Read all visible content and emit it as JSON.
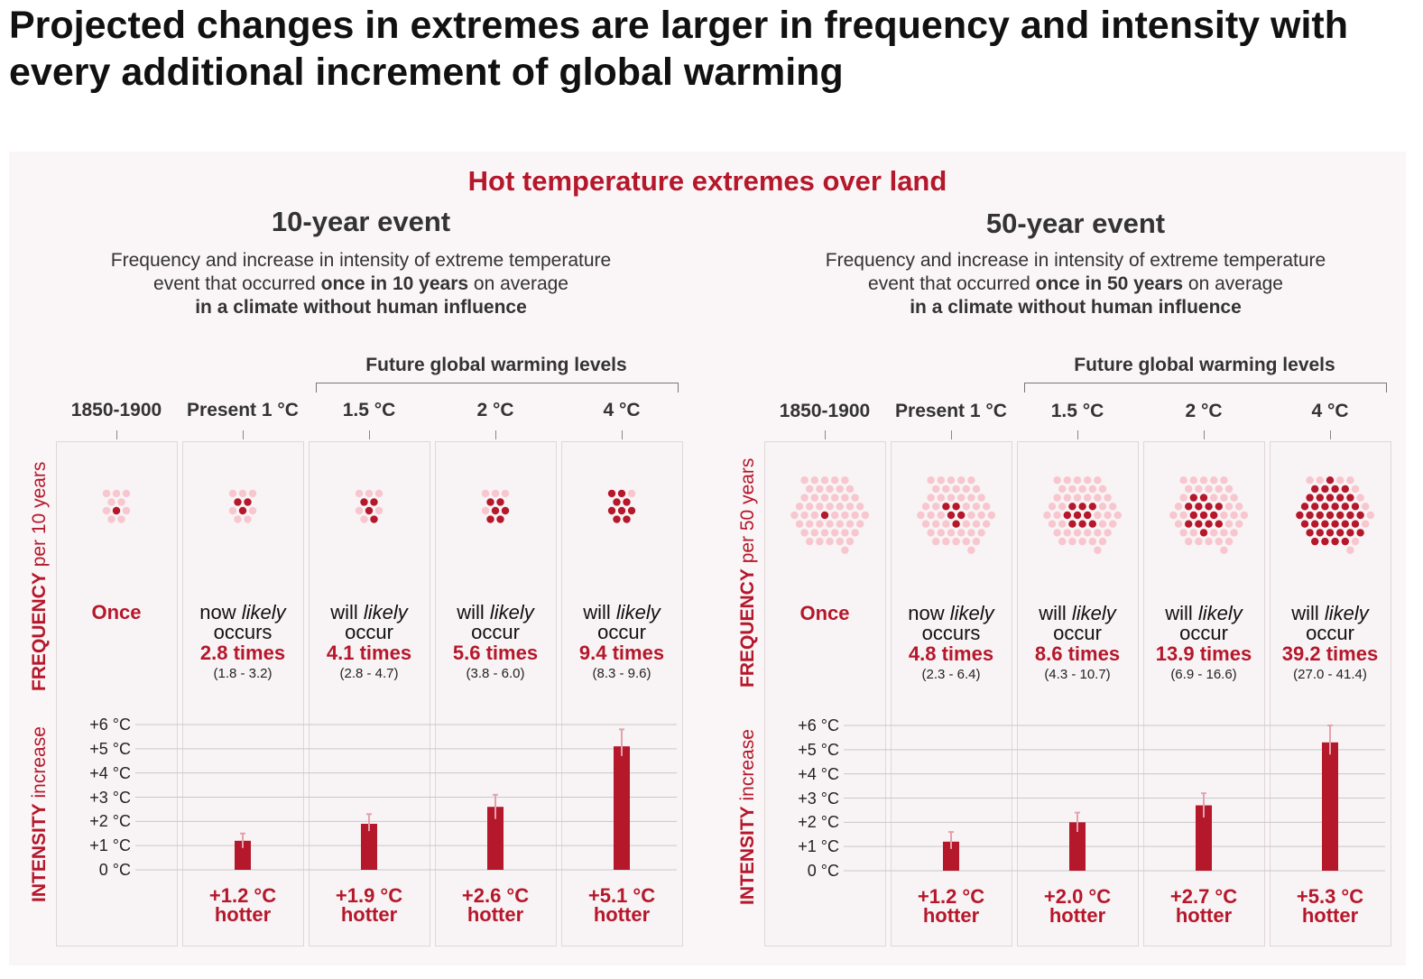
{
  "main_title": "Projected changes in extremes are larger in frequency and intensity with every additional increment of global warming",
  "section_title": "Hot temperature extremes over land",
  "future_label": "Future global warming levels",
  "column_headers": [
    "1850-1900",
    "Present 1 °C",
    "1.5 °C",
    "2 °C",
    "4 °C"
  ],
  "y_tick_labels": [
    "+6 °C",
    "+5 °C",
    "+4 °C",
    "+3 °C",
    "+2 °C",
    "+1 °C",
    "0 °C"
  ],
  "colors": {
    "accent": "#b5172b",
    "dot_light": "#f7c6ce",
    "error_bar": "#e3a3ae",
    "panel_bg": "#faf5f6"
  },
  "events": [
    {
      "title": "10-year event",
      "desc_line1": "Frequency and increase in intensity of extreme temperature",
      "desc_line2_pre": "event that occurred ",
      "desc_line2_bold": "once in 10 years",
      "desc_line2_post": " on average",
      "desc_line3": "in a climate without human influence",
      "freq_label_bold": "FREQUENCY",
      "freq_label_rest": " per 10 years",
      "intensity_label_bold": "INTENSITY",
      "intensity_label_rest": " increase",
      "columns": [
        {
          "once": "Once"
        },
        {
          "line1_pre": "now ",
          "line1_em": "likely",
          "line2": "occurs",
          "times": "2.8 times",
          "range": "(1.8 - 3.2)",
          "hot1": "+1.2 °C",
          "hot2": "hotter"
        },
        {
          "line1_pre": "will ",
          "line1_em": "likely",
          "line2": "occur",
          "times": "4.1 times",
          "range": "(2.8 - 4.7)",
          "hot1": "+1.9 °C",
          "hot2": "hotter"
        },
        {
          "line1_pre": "will ",
          "line1_em": "likely",
          "line2": "occur",
          "times": "5.6 times",
          "range": "(3.8 - 6.0)",
          "hot1": "+2.6 °C",
          "hot2": "hotter"
        },
        {
          "line1_pre": "will ",
          "line1_em": "likely",
          "line2": "occur",
          "times": "9.4 times",
          "range": "(8.3 - 9.6)",
          "hot1": "+5.1 °C",
          "hot2": "hotter"
        }
      ]
    },
    {
      "title": "50-year event",
      "desc_line1": "Frequency and increase in intensity of extreme temperature",
      "desc_line2_pre": "event that occurred ",
      "desc_line2_bold": "once in 50 years",
      "desc_line2_post": " on average",
      "desc_line3": "in a climate without human influence",
      "freq_label_bold": "FREQUENCY",
      "freq_label_rest": " per 50 years",
      "intensity_label_bold": "INTENSITY",
      "intensity_label_rest": " increase",
      "columns": [
        {
          "once": "Once"
        },
        {
          "line1_pre": "now ",
          "line1_em": "likely",
          "line2": "occurs",
          "times": "4.8 times",
          "range": "(2.3 - 6.4)",
          "hot1": "+1.2 °C",
          "hot2": "hotter"
        },
        {
          "line1_pre": "will ",
          "line1_em": "likely",
          "line2": "occur",
          "times": "8.6 times",
          "range": "(4.3 - 10.7)",
          "hot1": "+2.0 °C",
          "hot2": "hotter"
        },
        {
          "line1_pre": "will ",
          "line1_em": "likely",
          "line2": "occur",
          "times": "13.9 times",
          "range": "(6.9 - 16.6)",
          "hot1": "+2.7 °C",
          "hot2": "hotter"
        },
        {
          "line1_pre": "will ",
          "line1_em": "likely",
          "line2": "occur",
          "times": "39.2 times",
          "range": "(27.0 - 41.4)",
          "hot1": "+5.3 °C",
          "hot2": "hotter"
        }
      ]
    }
  ],
  "chart_data": [
    {
      "type": "bar",
      "title": "10-year event",
      "categories": [
        "1850-1900",
        "Present 1 °C",
        "1.5 °C",
        "2 °C",
        "4 °C"
      ],
      "frequency": {
        "total_events": 10,
        "values": [
          1,
          2.8,
          4.1,
          5.6,
          9.4
        ],
        "ranges": [
          null,
          [
            1.8,
            3.2
          ],
          [
            2.8,
            4.7
          ],
          [
            3.8,
            6.0
          ],
          [
            8.3,
            9.6
          ]
        ]
      },
      "intensity": {
        "values": [
          null,
          1.2,
          1.9,
          2.6,
          5.1
        ],
        "error_low": [
          null,
          0.9,
          1.6,
          2.1,
          4.7
        ],
        "error_high": [
          null,
          1.5,
          2.3,
          3.1,
          5.8
        ],
        "ylim": [
          0,
          6
        ]
      }
    },
    {
      "type": "bar",
      "title": "50-year event",
      "categories": [
        "1850-1900",
        "Present 1 °C",
        "1.5 °C",
        "2 °C",
        "4 °C"
      ],
      "frequency": {
        "total_events": 50,
        "values": [
          1,
          4.8,
          8.6,
          13.9,
          39.2
        ],
        "ranges": [
          null,
          [
            2.3,
            6.4
          ],
          [
            4.3,
            10.7
          ],
          [
            6.9,
            16.6
          ],
          [
            27.0,
            41.4
          ]
        ]
      },
      "intensity": {
        "values": [
          null,
          1.2,
          2.0,
          2.7,
          5.3
        ],
        "error_low": [
          null,
          0.9,
          1.6,
          2.2,
          4.8
        ],
        "error_high": [
          null,
          1.6,
          2.4,
          3.2,
          6.0
        ],
        "ylim": [
          0,
          6
        ]
      }
    }
  ]
}
